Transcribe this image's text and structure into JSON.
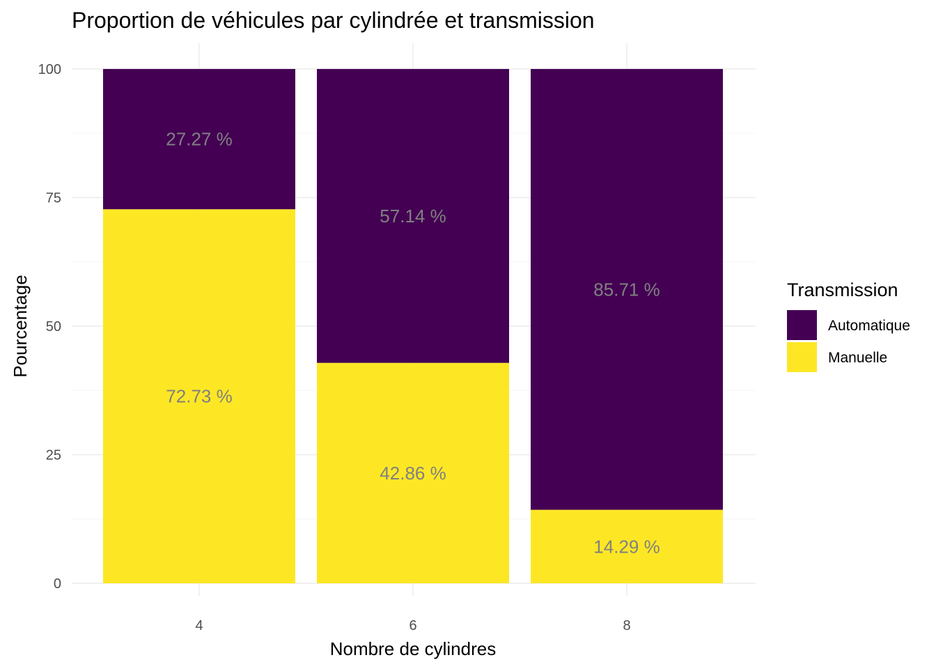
{
  "chart_data": {
    "type": "bar",
    "stacked": true,
    "title": "Proportion de véhicules par cylindrée et transmission",
    "xlabel": "Nombre de cylindres",
    "ylabel": "Pourcentage",
    "categories": [
      "4",
      "6",
      "8"
    ],
    "ylim": [
      0,
      100
    ],
    "yticks": [
      0,
      25,
      50,
      75,
      100
    ],
    "grid": true,
    "legend": {
      "title": "Transmission",
      "position": "right"
    },
    "series": [
      {
        "name": "Manuelle",
        "color": "#FDE725",
        "values": [
          72.73,
          42.86,
          14.29
        ],
        "labels": [
          "72.73 %",
          "42.86 %",
          "14.29 %"
        ]
      },
      {
        "name": "Automatique",
        "color": "#440154",
        "values": [
          27.27,
          57.14,
          85.71
        ],
        "labels": [
          "27.27 %",
          "57.14 %",
          "85.71 %"
        ]
      }
    ],
    "legend_order": [
      "Automatique",
      "Manuelle"
    ]
  }
}
